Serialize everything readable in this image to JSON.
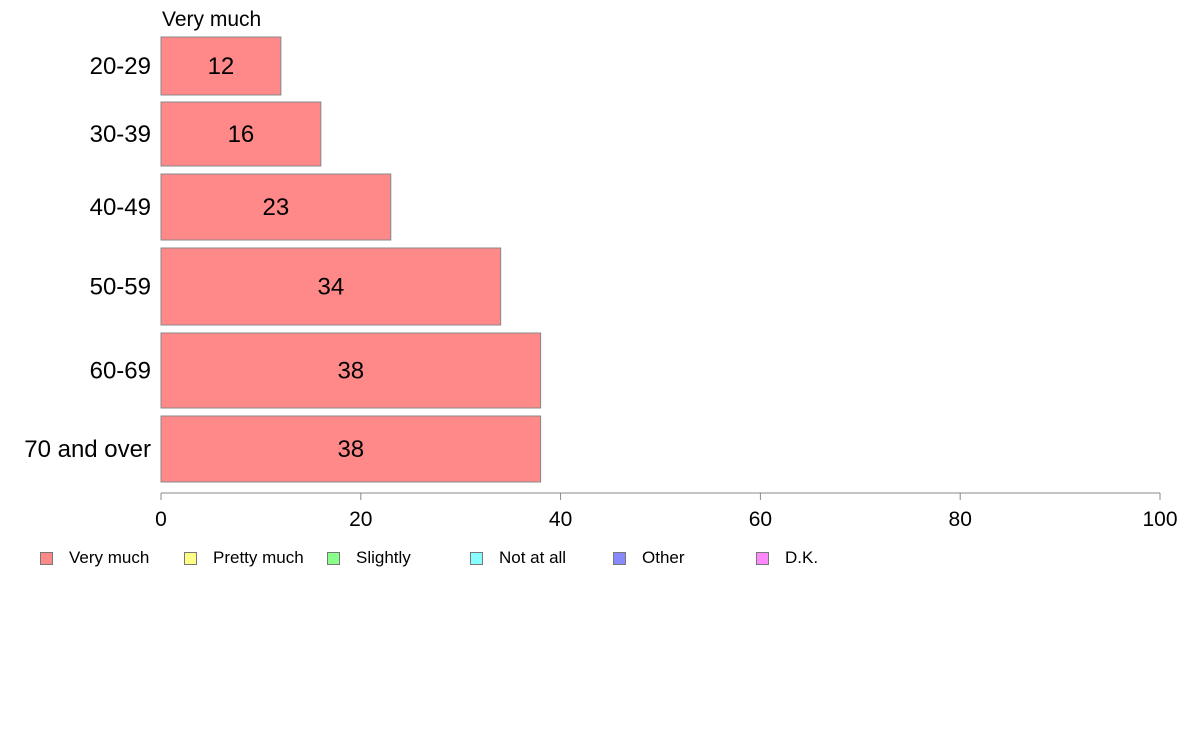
{
  "chart_data": {
    "type": "bar",
    "orientation": "horizontal",
    "title": "Very much",
    "categories": [
      "20-29",
      "30-39",
      "40-49",
      "50-59",
      "60-69",
      "70 and over"
    ],
    "series": [
      {
        "name": "Very much",
        "values": [
          12,
          16,
          23,
          34,
          38,
          38
        ],
        "color": "#ff8888"
      }
    ],
    "value_labels": [
      "12",
      "16",
      "23",
      "34",
      "38",
      "38"
    ],
    "xlim": [
      0,
      100
    ],
    "xticks": [
      0,
      20,
      40,
      60,
      80,
      100
    ],
    "grid": false,
    "legend": {
      "position": "bottom",
      "entries": [
        {
          "label": "Very much",
          "color": "#ff8888"
        },
        {
          "label": "Pretty much",
          "color": "#ffff88"
        },
        {
          "label": "Slightly",
          "color": "#88ff88"
        },
        {
          "label": "Not at all",
          "color": "#88ffff"
        },
        {
          "label": "Other",
          "color": "#8888ff"
        },
        {
          "label": "D.K.",
          "color": "#ff88ff"
        }
      ]
    }
  }
}
